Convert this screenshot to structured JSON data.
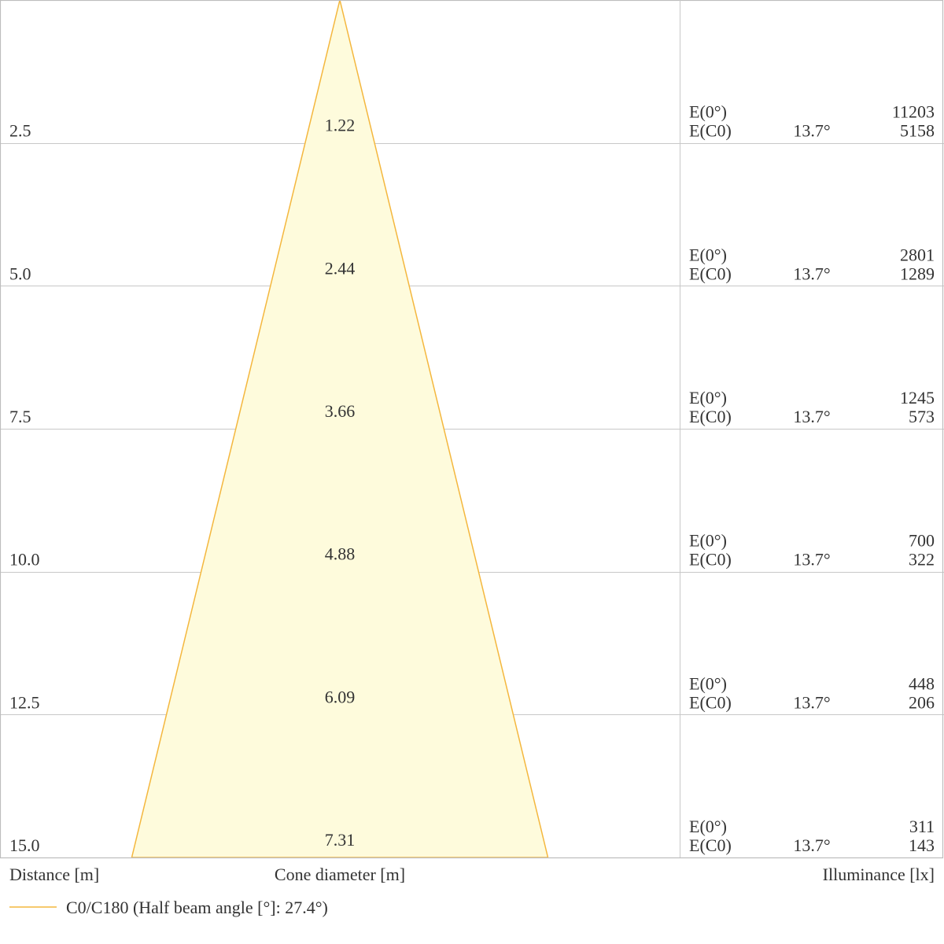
{
  "chart_data": {
    "type": "cone-diagram",
    "distance_label": "Distance [m]",
    "cone_label": "Cone diameter [m]",
    "illuminance_label": "Illuminance [lx]",
    "legend": "C0/C180 (Half beam angle [°]: 27.4°)",
    "row_label_e0": "E(0°)",
    "row_label_ec0": "E(C0)",
    "half_angle_label": "13.7°",
    "rows": [
      {
        "distance": "2.5",
        "diameter": "1.22",
        "e0": "11203",
        "ec0": "5158"
      },
      {
        "distance": "5.0",
        "diameter": "2.44",
        "e0": "2801",
        "ec0": "1289"
      },
      {
        "distance": "7.5",
        "diameter": "3.66",
        "e0": "1245",
        "ec0": "573"
      },
      {
        "distance": "10.0",
        "diameter": "4.88",
        "e0": "700",
        "ec0": "322"
      },
      {
        "distance": "12.5",
        "diameter": "6.09",
        "e0": "448",
        "ec0": "206"
      },
      {
        "distance": "15.0",
        "diameter": "7.31",
        "e0": "311",
        "ec0": "143"
      }
    ],
    "max_distance": 15.0,
    "max_diameter": 7.31,
    "colors": {
      "cone_fill": "#fefbdc",
      "cone_stroke": "#f4b73e",
      "grid": "#c8c8c8"
    }
  }
}
